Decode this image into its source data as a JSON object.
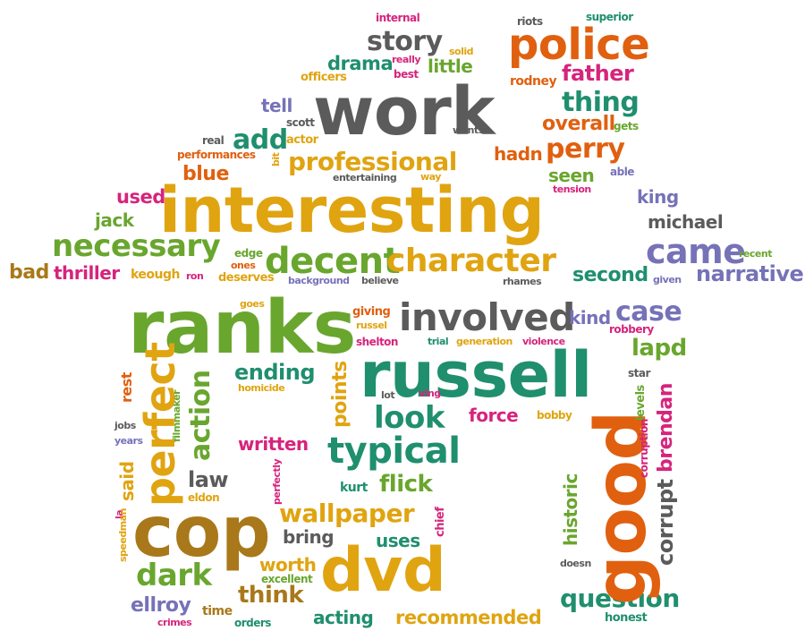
{
  "colors": {
    "orange": "#e0600f",
    "gold": "#e0a411",
    "green": "#69a62e",
    "teal": "#1f8f6e",
    "gray": "#5b5b5b",
    "purple": "#7672b8",
    "pink": "#d6247c",
    "brown": "#a9781a"
  },
  "words": [
    {
      "text": "internal",
      "c": "pink"
    },
    {
      "text": "riots",
      "c": "gray"
    },
    {
      "text": "superior",
      "c": "teal"
    },
    {
      "text": "story",
      "c": "gray"
    },
    {
      "text": "solid",
      "c": "gold"
    },
    {
      "text": "police",
      "c": "orange"
    },
    {
      "text": "really",
      "c": "pink"
    },
    {
      "text": "best",
      "c": "pink"
    },
    {
      "text": "little",
      "c": "green"
    },
    {
      "text": "drama",
      "c": "teal"
    },
    {
      "text": "officers",
      "c": "gold"
    },
    {
      "text": "father",
      "c": "pink"
    },
    {
      "text": "rodney",
      "c": "orange"
    },
    {
      "text": "work",
      "c": "gray"
    },
    {
      "text": "thing",
      "c": "teal"
    },
    {
      "text": "tell",
      "c": "purple"
    },
    {
      "text": "overall",
      "c": "orange"
    },
    {
      "text": "gets",
      "c": "green"
    },
    {
      "text": "scott",
      "c": "gray"
    },
    {
      "text": "wants",
      "c": "gray"
    },
    {
      "text": "add",
      "c": "teal"
    },
    {
      "text": "actor",
      "c": "gold"
    },
    {
      "text": "real",
      "c": "gray"
    },
    {
      "text": "hadn",
      "c": "orange"
    },
    {
      "text": "perry",
      "c": "orange"
    },
    {
      "text": "bit",
      "c": "gold"
    },
    {
      "text": "performances",
      "c": "orange"
    },
    {
      "text": "professional",
      "c": "gold"
    },
    {
      "text": "blue",
      "c": "orange"
    },
    {
      "text": "entertaining",
      "c": "gray"
    },
    {
      "text": "way",
      "c": "gold"
    },
    {
      "text": "seen",
      "c": "green"
    },
    {
      "text": "able",
      "c": "purple"
    },
    {
      "text": "tension",
      "c": "pink"
    },
    {
      "text": "used",
      "c": "pink"
    },
    {
      "text": "interesting",
      "c": "gold"
    },
    {
      "text": "king",
      "c": "purple"
    },
    {
      "text": "jack",
      "c": "green"
    },
    {
      "text": "michael",
      "c": "gray"
    },
    {
      "text": "necessary",
      "c": "green"
    },
    {
      "text": "edge",
      "c": "green"
    },
    {
      "text": "ones",
      "c": "orange"
    },
    {
      "text": "decent",
      "c": "green"
    },
    {
      "text": "character",
      "c": "gold"
    },
    {
      "text": "came",
      "c": "purple"
    },
    {
      "text": "recent",
      "c": "green"
    },
    {
      "text": "bad",
      "c": "brown"
    },
    {
      "text": "thriller",
      "c": "pink"
    },
    {
      "text": "keough",
      "c": "gold"
    },
    {
      "text": "ron",
      "c": "pink"
    },
    {
      "text": "deserves",
      "c": "gold"
    },
    {
      "text": "background",
      "c": "purple"
    },
    {
      "text": "believe",
      "c": "gray"
    },
    {
      "text": "rhames",
      "c": "gray"
    },
    {
      "text": "second",
      "c": "teal"
    },
    {
      "text": "given",
      "c": "purple"
    },
    {
      "text": "narrative",
      "c": "purple"
    },
    {
      "text": "goes",
      "c": "gold"
    },
    {
      "text": "ranks",
      "c": "green"
    },
    {
      "text": "giving",
      "c": "orange"
    },
    {
      "text": "russel",
      "c": "gold"
    },
    {
      "text": "involved",
      "c": "gray"
    },
    {
      "text": "kind",
      "c": "purple"
    },
    {
      "text": "case",
      "c": "purple"
    },
    {
      "text": "robbery",
      "c": "pink"
    },
    {
      "text": "shelton",
      "c": "pink"
    },
    {
      "text": "trial",
      "c": "teal"
    },
    {
      "text": "generation",
      "c": "gold"
    },
    {
      "text": "violence",
      "c": "pink"
    },
    {
      "text": "lapd",
      "c": "green"
    },
    {
      "text": "russell",
      "c": "teal"
    },
    {
      "text": "ending",
      "c": "teal"
    },
    {
      "text": "homicide",
      "c": "gold"
    },
    {
      "text": "star",
      "c": "gray"
    },
    {
      "text": "lot",
      "c": "gray"
    },
    {
      "text": "ving",
      "c": "pink"
    },
    {
      "text": "look",
      "c": "teal"
    },
    {
      "text": "force",
      "c": "pink"
    },
    {
      "text": "bobby",
      "c": "gold"
    },
    {
      "text": "jobs",
      "c": "gray"
    },
    {
      "text": "years",
      "c": "purple"
    },
    {
      "text": "written",
      "c": "pink"
    },
    {
      "text": "typical",
      "c": "teal"
    },
    {
      "text": "law",
      "c": "gray"
    },
    {
      "text": "eldon",
      "c": "gold"
    },
    {
      "text": "kurt",
      "c": "teal"
    },
    {
      "text": "flick",
      "c": "green"
    },
    {
      "text": "cop",
      "c": "brown"
    },
    {
      "text": "wallpaper",
      "c": "gold"
    },
    {
      "text": "bring",
      "c": "gray"
    },
    {
      "text": "uses",
      "c": "teal"
    },
    {
      "text": "doesn",
      "c": "gray"
    },
    {
      "text": "dark",
      "c": "green"
    },
    {
      "text": "dvd",
      "c": "gold"
    },
    {
      "text": "worth",
      "c": "gold"
    },
    {
      "text": "excellent",
      "c": "green"
    },
    {
      "text": "think",
      "c": "brown"
    },
    {
      "text": "question",
      "c": "teal"
    },
    {
      "text": "ellroy",
      "c": "purple"
    },
    {
      "text": "time",
      "c": "brown"
    },
    {
      "text": "crimes",
      "c": "pink"
    },
    {
      "text": "acting",
      "c": "teal"
    },
    {
      "text": "recommended",
      "c": "gold"
    },
    {
      "text": "honest",
      "c": "teal"
    },
    {
      "text": "orders",
      "c": "teal"
    },
    {
      "text": "rest",
      "c": "orange"
    },
    {
      "text": "filmmaker",
      "c": "green"
    },
    {
      "text": "perfect",
      "c": "gold"
    },
    {
      "text": "action",
      "c": "green"
    },
    {
      "text": "points",
      "c": "gold"
    },
    {
      "text": "good",
      "c": "orange"
    },
    {
      "text": "brendan",
      "c": "pink"
    },
    {
      "text": "levels",
      "c": "green"
    },
    {
      "text": "corruption",
      "c": "pink"
    },
    {
      "text": "corrupt",
      "c": "gray"
    },
    {
      "text": "historic",
      "c": "green"
    },
    {
      "text": "said",
      "c": "gold"
    },
    {
      "text": "la",
      "c": "pink"
    },
    {
      "text": "perfectly",
      "c": "pink"
    },
    {
      "text": "chief",
      "c": "pink"
    },
    {
      "text": "speedman",
      "c": "gold"
    }
  ]
}
